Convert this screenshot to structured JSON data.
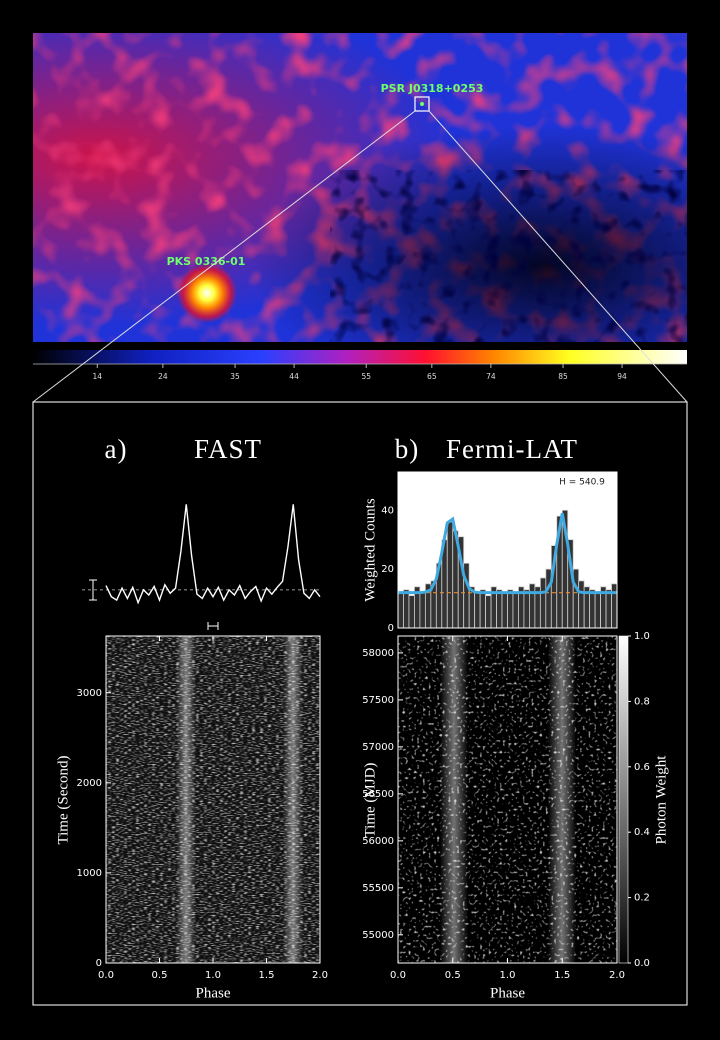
{
  "skymap": {
    "sources": [
      "PSR J0318+0253",
      "PKS 0336-01"
    ]
  },
  "chart_data": [
    {
      "type": "colorbar",
      "xlim": [
        4.2,
        103.9
      ],
      "xticks": [
        14,
        24,
        35,
        44,
        55,
        65,
        74,
        85,
        94
      ]
    },
    {
      "type": "line",
      "panel": "a)",
      "title": "FAST",
      "color": "#ffffff",
      "xlim": [
        0,
        2
      ],
      "ylim": [
        -0.2,
        1.05
      ],
      "x": [
        0,
        0.05,
        0.1,
        0.15,
        0.2,
        0.25,
        0.3,
        0.35,
        0.4,
        0.45,
        0.5,
        0.55,
        0.6,
        0.65,
        0.7,
        0.75,
        0.8,
        0.85,
        0.9,
        0.95,
        1,
        1.05,
        1.1,
        1.15,
        1.2,
        1.25,
        1.3,
        1.35,
        1.4,
        1.45,
        1.5,
        1.55,
        1.6,
        1.65,
        1.7,
        1.75,
        1.8,
        1.85,
        1.9,
        1.95,
        2
      ],
      "values": [
        0.05,
        -0.08,
        -0.12,
        0.02,
        -0.1,
        0.03,
        -0.15,
        0,
        -0.06,
        0.04,
        -0.12,
        0.06,
        -0.04,
        0.02,
        0.45,
        1,
        0.4,
        -0.05,
        -0.1,
        0.02,
        -0.08,
        0.03,
        -0.12,
        0,
        -0.06,
        0.05,
        -0.1,
        -0.02,
        0.04,
        -0.13,
        0.02,
        -0.05,
        0.03,
        0.1,
        0.5,
        1,
        0.35,
        -0.04,
        -0.1,
        0,
        -0.08
      ]
    },
    {
      "type": "heatmap",
      "xlabel": "Phase",
      "ylabel": "Time (Second)",
      "xlim": [
        0,
        2
      ],
      "ylim": [
        0,
        3630
      ],
      "xticks": [
        {
          "value": 0,
          "label": "0.0"
        },
        0.5,
        {
          "value": 1,
          "label": "1.0"
        },
        1.5,
        {
          "value": 2,
          "label": "2.0"
        }
      ],
      "yticks": [
        0,
        1000,
        2000,
        3000
      ]
    },
    {
      "type": "histogram",
      "panel": "b)",
      "title": "Fermi-LAT",
      "ylabel": "Weighted Counts",
      "annotation": "H = 540.9",
      "color": "#333333",
      "edge_color": "#cfcfcf",
      "xlim": [
        0,
        2
      ],
      "ylim": [
        0,
        53
      ],
      "yticks": [
        0,
        20,
        40
      ],
      "bins": [
        0,
        0.05,
        0.1,
        0.15,
        0.2,
        0.25,
        0.3,
        0.35,
        0.4,
        0.45,
        0.5,
        0.55,
        0.6,
        0.65,
        0.7,
        0.75,
        0.8,
        0.85,
        0.9,
        0.95,
        1,
        1.05,
        1.1,
        1.15,
        1.2,
        1.25,
        1.3,
        1.35,
        1.4,
        1.45,
        1.5,
        1.55,
        1.6,
        1.65,
        1.7,
        1.75,
        1.8,
        1.85,
        1.9,
        1.95,
        2
      ],
      "values": [
        12,
        13,
        11,
        14,
        12,
        15,
        16,
        22,
        30,
        36,
        33,
        31,
        22,
        14,
        12,
        13,
        11,
        14,
        13,
        12,
        13,
        12,
        14,
        13,
        15,
        14,
        17,
        20,
        28,
        38,
        40,
        30,
        20,
        16,
        14,
        13,
        12,
        14,
        13,
        15
      ],
      "fit_color": "#3fa9e0",
      "fit_x": [
        0,
        0.05,
        0.1,
        0.15,
        0.2,
        0.25,
        0.3,
        0.35,
        0.4,
        0.45,
        0.5,
        0.55,
        0.6,
        0.65,
        0.7,
        0.75,
        0.8,
        0.85,
        0.9,
        0.95,
        1,
        1.05,
        1.1,
        1.15,
        1.2,
        1.25,
        1.3,
        1.35,
        1.4,
        1.45,
        1.5,
        1.55,
        1.6,
        1.65,
        1.7,
        1.75,
        1.8,
        1.85,
        1.9,
        1.95,
        2
      ],
      "fit_values": [
        12,
        12,
        12,
        12,
        12,
        12.2,
        13,
        16.7,
        25.6,
        35.7,
        37,
        27.8,
        18,
        13.4,
        12.2,
        12,
        12,
        12,
        12,
        12,
        12,
        12,
        12,
        12,
        12,
        12,
        12,
        12.3,
        15.6,
        28.4,
        39,
        28.4,
        15.6,
        12.3,
        12,
        12,
        12,
        12,
        12,
        12,
        12
      ],
      "background_level": 12,
      "background_color": "#e0893a"
    },
    {
      "type": "phaseogram",
      "xlabel": "Phase",
      "ylabel": "Time (MJD)",
      "xlim": [
        0,
        2
      ],
      "ylim": [
        54700,
        58180
      ],
      "xticks": [
        {
          "value": 0,
          "label": "0.0"
        },
        0.5,
        {
          "value": 1,
          "label": "1.0"
        },
        1.5,
        {
          "value": 2,
          "label": "2.0"
        }
      ],
      "yticks": [
        55000,
        55500,
        56000,
        56500,
        57000,
        57500,
        58000
      ]
    },
    {
      "type": "colorbar-vertical",
      "label": "Photon Weight",
      "ylim": [
        0,
        1
      ],
      "yticks": [
        {
          "value": 0,
          "label": "0.0"
        },
        0.2,
        0.4,
        0.6,
        0.8,
        {
          "value": 1,
          "label": "1.0"
        }
      ]
    }
  ]
}
